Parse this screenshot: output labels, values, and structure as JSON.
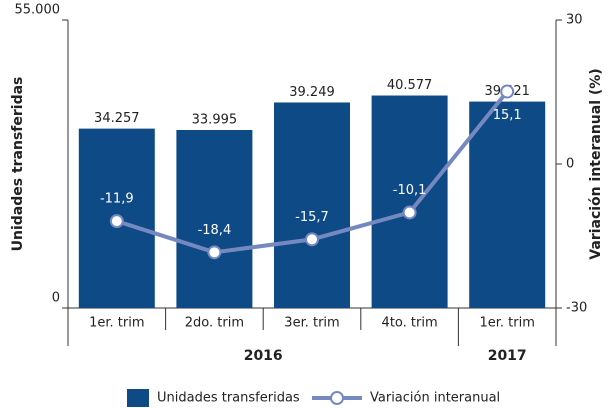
{
  "chart_data": {
    "type": "bar_line",
    "categories": [
      "1er. trim",
      "2do. trim",
      "3er. trim",
      "4to. trim",
      "1er. trim"
    ],
    "groups": [
      "2016",
      "2017"
    ],
    "ylabel": "Unidades transferidas",
    "y2label": "Variación interanual (%)",
    "ylim": [
      0,
      55000
    ],
    "yticks": [
      0,
      {
        "value": 55000,
        "label": "55.000"
      }
    ],
    "y2lim": [
      -30,
      30
    ],
    "y2ticks": [
      -30,
      0,
      30
    ],
    "series": [
      {
        "name": "Unidades transferidas",
        "color": "#0e4a86",
        "values": [
          34257,
          33995,
          39249,
          40577,
          39421
        ],
        "value_labels": [
          "34.257",
          "33.995",
          "39.249",
          "40.577",
          "39.421"
        ]
      },
      {
        "name": "Variación interanual",
        "color": "#7589c0",
        "axis": "y2",
        "values": [
          -11.9,
          -18.4,
          -15.7,
          -10.1,
          15.1
        ],
        "value_labels": [
          "-11,9",
          "-18,4",
          "-15,7",
          "-10,1",
          "15,1"
        ]
      }
    ]
  }
}
